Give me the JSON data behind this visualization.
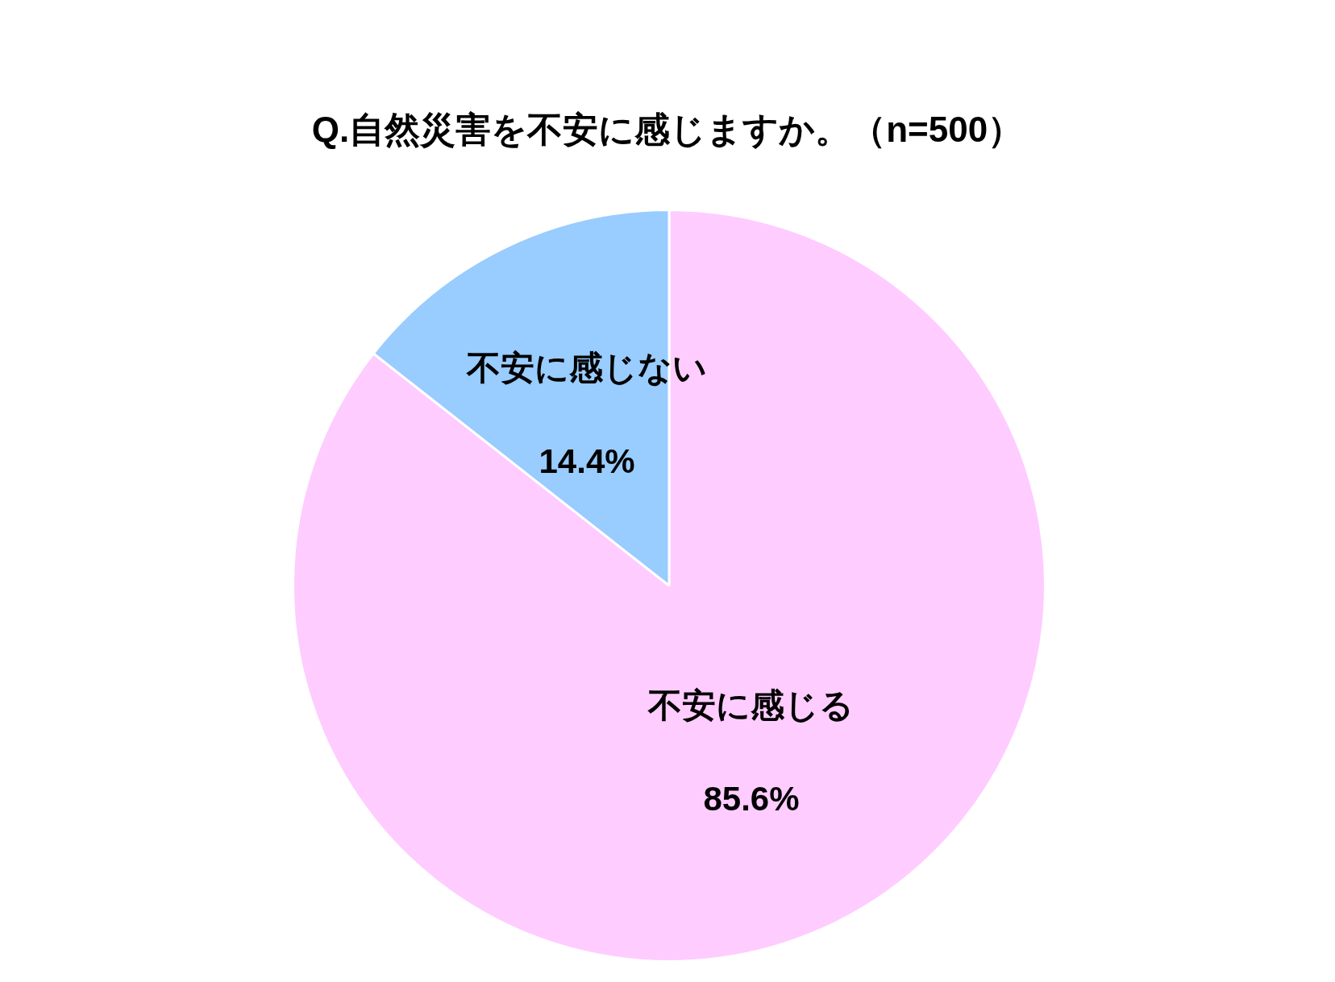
{
  "chart_data": {
    "type": "pie",
    "title": "Q.自然災害を不安に感じますか。（n=500）",
    "categories": [
      "不安に感じる",
      "不安に感じない"
    ],
    "values": [
      85.6,
      14.4
    ],
    "colors": [
      "#ffccff",
      "#99ccff"
    ],
    "value_labels": [
      "85.6%",
      "14.4%"
    ],
    "legend": false
  }
}
